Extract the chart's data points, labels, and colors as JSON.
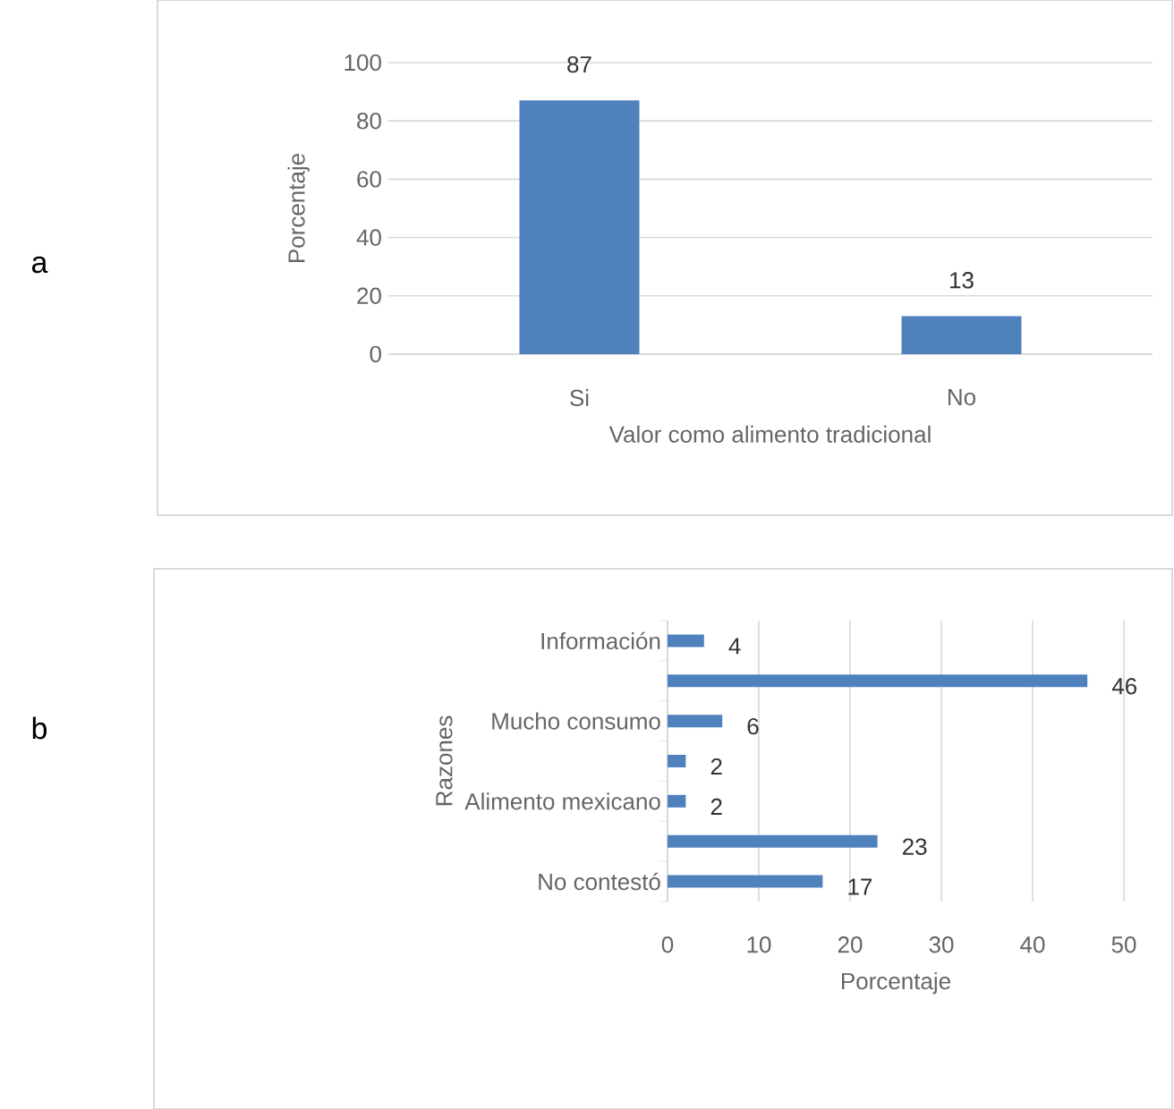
{
  "chart_data": [
    {
      "type": "bar",
      "annotations": [
        "a"
      ],
      "xlabel": "Valor como alimento tradicional",
      "ylabel": "Porcentaje",
      "categories": [
        "Si",
        "No"
      ],
      "values": [
        87,
        13
      ],
      "color": "#4f81bd",
      "ylim": [
        0,
        100
      ],
      "yticks": [
        0,
        20,
        40,
        60,
        80,
        100
      ],
      "grid": "y",
      "data_labels": true
    },
    {
      "type": "bar",
      "orientation": "horizontal",
      "annotations": [
        "b"
      ],
      "xlabel": "Porcentaje",
      "ylabel": "Razones",
      "categories": [
        "Información",
        null,
        "Mucho consumo",
        null,
        "Alimento mexicano",
        null,
        "No contestó"
      ],
      "values": [
        4,
        46,
        6,
        2,
        2,
        23,
        17
      ],
      "color": "#4f81bd",
      "xlim": [
        0,
        50
      ],
      "xticks": [
        0,
        10,
        20,
        30,
        40,
        50
      ],
      "grid": "x",
      "data_labels": true
    }
  ]
}
